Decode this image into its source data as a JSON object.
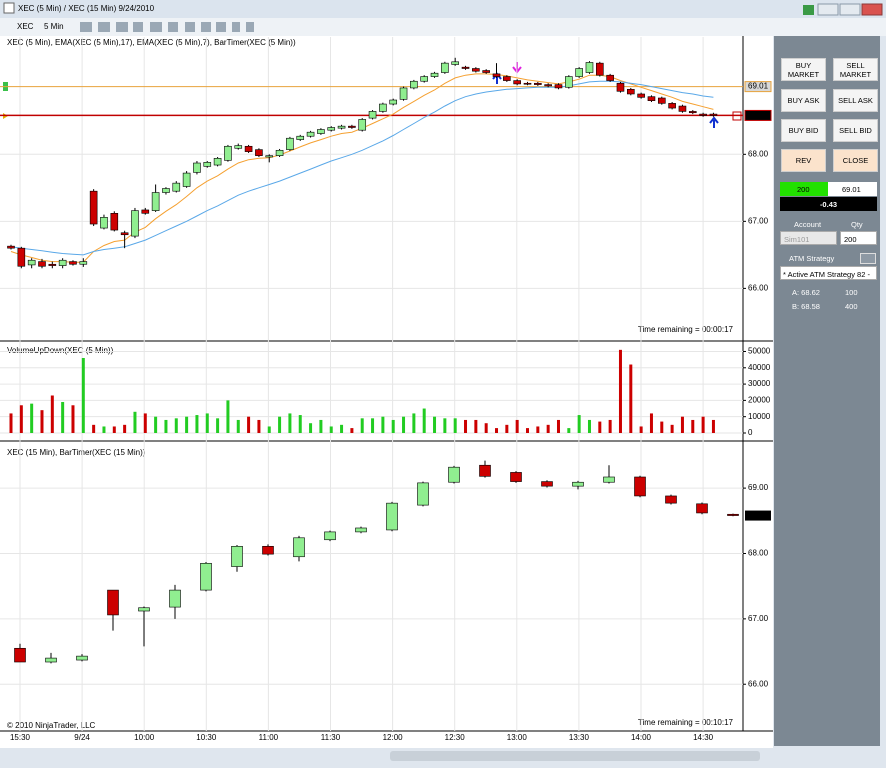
{
  "window": {
    "title": "XEC (5 Min) / XEC (15 Min)  9/24/2010"
  },
  "toolbar": {
    "instrument": "XEC",
    "interval": "5 Min"
  },
  "colors": {
    "up": "#90ee90",
    "down": "#cc0000"
  },
  "panels": [
    {
      "label": "XEC (5 Min), EMA(XEC (5 Min),17), EMA(XEC (5 Min),7), BarTimer(XEC (5 Min))",
      "ylim": [
        65.23,
        69.75
      ],
      "yticks": [
        {
          "value": 66,
          "label": "66.00"
        },
        {
          "value": 67,
          "label": "67.00"
        },
        {
          "value": 68,
          "label": "68.00"
        }
      ],
      "candles": [
        [
          66.63,
          66.65,
          66.58,
          66.6
        ],
        [
          66.6,
          66.62,
          66.3,
          66.33
        ],
        [
          66.35,
          66.45,
          66.3,
          66.42
        ],
        [
          66.4,
          66.44,
          66.3,
          66.33
        ],
        [
          66.36,
          66.4,
          66.3,
          66.34
        ],
        [
          66.34,
          66.45,
          66.3,
          66.42
        ],
        [
          66.4,
          66.42,
          66.34,
          66.36
        ],
        [
          66.36,
          66.45,
          66.32,
          66.4
        ],
        [
          67.45,
          67.48,
          66.93,
          66.96
        ],
        [
          66.9,
          67.1,
          66.88,
          67.06
        ],
        [
          67.12,
          67.15,
          66.85,
          66.87
        ],
        [
          66.83,
          66.86,
          66.6,
          66.8
        ],
        [
          66.78,
          67.2,
          66.75,
          67.16
        ],
        [
          67.17,
          67.2,
          67.1,
          67.12
        ],
        [
          67.16,
          67.55,
          67.14,
          67.43
        ],
        [
          67.43,
          67.51,
          67.4,
          67.49
        ],
        [
          67.45,
          67.6,
          67.43,
          67.57
        ],
        [
          67.52,
          67.75,
          67.5,
          67.72
        ],
        [
          67.73,
          67.9,
          67.7,
          67.87
        ],
        [
          67.82,
          67.9,
          67.8,
          67.88
        ],
        [
          67.84,
          67.96,
          67.82,
          67.94
        ],
        [
          67.91,
          68.14,
          67.89,
          68.12
        ],
        [
          68.09,
          68.16,
          68.07,
          68.13
        ],
        [
          68.12,
          68.14,
          68.02,
          68.04
        ],
        [
          68.07,
          68.09,
          67.96,
          67.98
        ],
        [
          67.96,
          68.0,
          67.88,
          67.98
        ],
        [
          67.98,
          68.08,
          67.96,
          68.06
        ],
        [
          68.07,
          68.26,
          68.05,
          68.24
        ],
        [
          68.22,
          68.29,
          68.2,
          68.27
        ],
        [
          68.27,
          68.35,
          68.25,
          68.33
        ],
        [
          68.31,
          68.39,
          68.29,
          68.37
        ],
        [
          68.36,
          68.42,
          68.34,
          68.4
        ],
        [
          68.39,
          68.44,
          68.37,
          68.42
        ],
        [
          68.42,
          68.44,
          68.38,
          68.4
        ],
        [
          68.36,
          68.54,
          68.34,
          68.52
        ],
        [
          68.54,
          68.66,
          68.52,
          68.64
        ],
        [
          68.64,
          68.77,
          68.62,
          68.75
        ],
        [
          68.75,
          68.83,
          68.73,
          68.81
        ],
        [
          68.82,
          69.01,
          68.8,
          68.99
        ],
        [
          68.99,
          69.11,
          68.97,
          69.09
        ],
        [
          69.09,
          69.18,
          69.07,
          69.16
        ],
        [
          69.16,
          69.23,
          69.14,
          69.21
        ],
        [
          69.22,
          69.38,
          69.2,
          69.36
        ],
        [
          69.34,
          69.44,
          69.32,
          69.38
        ],
        [
          69.3,
          69.32,
          69.26,
          69.28
        ],
        [
          69.28,
          69.3,
          69.22,
          69.24
        ],
        [
          69.25,
          69.27,
          69.2,
          69.22
        ],
        [
          69.2,
          69.36,
          69.14,
          69.16
        ],
        [
          69.16,
          69.18,
          69.08,
          69.1
        ],
        [
          69.1,
          69.12,
          69.03,
          69.05
        ],
        [
          69.06,
          69.08,
          69.03,
          69.05
        ],
        [
          69.06,
          69.08,
          69.02,
          69.04
        ],
        [
          69.04,
          69.06,
          69.0,
          69.02
        ],
        [
          69.04,
          69.06,
          68.97,
          68.99
        ],
        [
          69.0,
          69.18,
          68.98,
          69.16
        ],
        [
          69.16,
          69.3,
          69.14,
          69.28
        ],
        [
          69.22,
          69.39,
          69.2,
          69.37
        ],
        [
          69.36,
          69.38,
          69.16,
          69.18
        ],
        [
          69.18,
          69.2,
          69.08,
          69.1
        ],
        [
          69.06,
          69.08,
          68.92,
          68.94
        ],
        [
          68.97,
          68.99,
          68.88,
          68.9
        ],
        [
          68.9,
          68.92,
          68.83,
          68.85
        ],
        [
          68.86,
          68.88,
          68.78,
          68.8
        ],
        [
          68.84,
          68.86,
          68.74,
          68.76
        ],
        [
          68.76,
          68.78,
          68.67,
          68.69
        ],
        [
          68.72,
          68.74,
          68.62,
          68.64
        ],
        [
          68.64,
          68.66,
          68.6,
          68.62
        ],
        [
          68.6,
          68.62,
          68.56,
          68.58
        ],
        [
          68.6,
          68.62,
          68.56,
          68.58
        ]
      ],
      "lines": [
        {
          "color": "#f5a030",
          "values": [
            66.55,
            66.5,
            66.46,
            66.42,
            66.4,
            66.4,
            66.39,
            66.39,
            66.55,
            66.64,
            66.7,
            66.72,
            66.84,
            66.91,
            67.04,
            67.15,
            67.25,
            67.37,
            67.5,
            67.6,
            67.68,
            67.78,
            67.87,
            67.92,
            67.94,
            67.95,
            67.99,
            68.05,
            68.11,
            68.17,
            68.22,
            68.27,
            68.31,
            68.33,
            68.39,
            68.46,
            68.53,
            68.6,
            68.7,
            68.79,
            68.88,
            68.96,
            69.06,
            69.14,
            69.18,
            69.2,
            69.2,
            69.19,
            69.17,
            69.14,
            69.11,
            69.09,
            69.07,
            69.05,
            69.08,
            69.12,
            69.18,
            69.18,
            69.16,
            69.1,
            69.05,
            69.0,
            68.95,
            68.9,
            68.85,
            68.79,
            68.75,
            68.71,
            68.67
          ]
        },
        {
          "color": "#5aa8e8",
          "values": [
            66.62,
            66.6,
            66.58,
            66.56,
            66.54,
            66.52,
            66.51,
            66.5,
            66.55,
            66.58,
            66.6,
            66.62,
            66.67,
            66.72,
            66.79,
            66.86,
            66.93,
            67.0,
            67.08,
            67.16,
            67.23,
            67.31,
            67.39,
            67.45,
            67.5,
            67.55,
            67.6,
            67.66,
            67.72,
            67.78,
            67.84,
            67.9,
            67.95,
            68.0,
            68.06,
            68.13,
            68.2,
            68.28,
            68.37,
            68.46,
            68.55,
            68.63,
            68.72,
            68.8,
            68.86,
            68.9,
            68.93,
            68.95,
            68.97,
            68.98,
            68.99,
            69.0,
            69.0,
            69.0,
            69.02,
            69.05,
            69.08,
            69.09,
            69.09,
            69.08,
            69.06,
            69.04,
            69.01,
            68.98,
            68.95,
            68.92,
            68.9,
            68.87,
            68.85
          ]
        }
      ],
      "price_lines": [
        {
          "value": 69.01,
          "color": "#e8a33c"
        },
        {
          "value": 68.58,
          "color": "#c00000"
        }
      ],
      "timer": "Time remaining = 00:00:17"
    },
    {
      "label": "VolumeUpDown(XEC (5 Min))",
      "ylim": [
        -4300,
        55200
      ],
      "yticks": [
        0,
        10000,
        20000,
        30000,
        40000,
        50000
      ],
      "values": [
        12000,
        17000,
        18000,
        14000,
        23000,
        19000,
        17000,
        46000,
        5000,
        4000,
        4000,
        5000,
        13000,
        12000,
        10000,
        8000,
        9000,
        10000,
        11000,
        12000,
        9000,
        20000,
        8000,
        10000,
        8000,
        4000,
        10000,
        12000,
        11000,
        6000,
        8000,
        4000,
        5000,
        3000,
        9000,
        9000,
        10000,
        8000,
        10000,
        12000,
        15000,
        10000,
        9000,
        9000,
        8000,
        8000,
        6000,
        3000,
        5000,
        8000,
        3000,
        4000,
        5000,
        8000,
        3000,
        11000,
        8000,
        7000,
        8000,
        51000,
        42000,
        4000,
        12000,
        7000,
        5000,
        10000,
        8000,
        10000,
        8000
      ]
    },
    {
      "label": "XEC (15 Min), BarTimer(XEC (15 Min))",
      "ylim": [
        65.3,
        69.69
      ],
      "yticks": [
        {
          "value": 66,
          "label": "66.00"
        },
        {
          "value": 67,
          "label": "67.00"
        },
        {
          "value": 68,
          "label": "68.00"
        },
        {
          "value": 69,
          "label": "69.00"
        }
      ],
      "candles": [
        [
          66.55,
          66.62,
          66.34,
          66.34
        ],
        [
          66.34,
          66.48,
          66.32,
          66.4
        ],
        [
          66.37,
          66.46,
          66.35,
          66.43
        ],
        [
          67.44,
          67.44,
          66.82,
          67.06
        ],
        [
          67.12,
          67.19,
          66.58,
          67.17
        ],
        [
          67.18,
          67.52,
          67.0,
          67.44
        ],
        [
          67.44,
          67.87,
          67.42,
          67.85
        ],
        [
          67.8,
          68.13,
          67.72,
          68.11
        ],
        [
          68.11,
          68.14,
          67.97,
          67.99
        ],
        [
          67.95,
          68.27,
          67.88,
          68.24
        ],
        [
          68.21,
          68.35,
          68.19,
          68.33
        ],
        [
          68.33,
          68.41,
          68.31,
          68.39
        ],
        [
          68.36,
          68.79,
          68.34,
          68.77
        ],
        [
          68.74,
          69.1,
          68.72,
          69.08
        ],
        [
          69.09,
          69.34,
          69.07,
          69.32
        ],
        [
          69.35,
          69.42,
          69.16,
          69.18
        ],
        [
          69.24,
          69.26,
          69.08,
          69.1
        ],
        [
          69.1,
          69.12,
          69.01,
          69.03
        ],
        [
          69.03,
          69.11,
          68.98,
          69.09
        ],
        [
          69.09,
          69.35,
          69.07,
          69.17
        ],
        [
          69.17,
          69.19,
          68.86,
          68.88
        ],
        [
          68.88,
          68.9,
          68.75,
          68.77
        ],
        [
          68.76,
          68.78,
          68.6,
          68.62
        ],
        [
          68.6,
          68.61,
          68.57,
          68.58
        ]
      ],
      "last_price": 68.58,
      "timer": "Time remaining = 00:10:17",
      "copyright": "© 2010 NinjaTrader, LLC"
    }
  ],
  "time_axis": [
    "15:30",
    "9/24",
    "10:00",
    "10:30",
    "11:00",
    "11:30",
    "12:00",
    "12:30",
    "13:00",
    "13:30",
    "14:00",
    "14:30"
  ],
  "order_panel": {
    "buttons": [
      "BUY MARKET",
      "SELL MARKET",
      "BUY ASK",
      "SELL ASK",
      "BUY BID",
      "SELL BID",
      "REV",
      "CLOSE"
    ],
    "position_qty": 200,
    "avg_price": 69.01,
    "pnl": -0.43,
    "account_label": "Account",
    "qty_label": "Qty",
    "account": "Sim101",
    "qty": 200,
    "atm_label": "ATM Strategy",
    "atm_strategy": "* Active ATM Strategy 82 -",
    "ask": "A: 68.62",
    "ask_size": 100,
    "bid": "B: 68.58",
    "bid_size": 400
  }
}
